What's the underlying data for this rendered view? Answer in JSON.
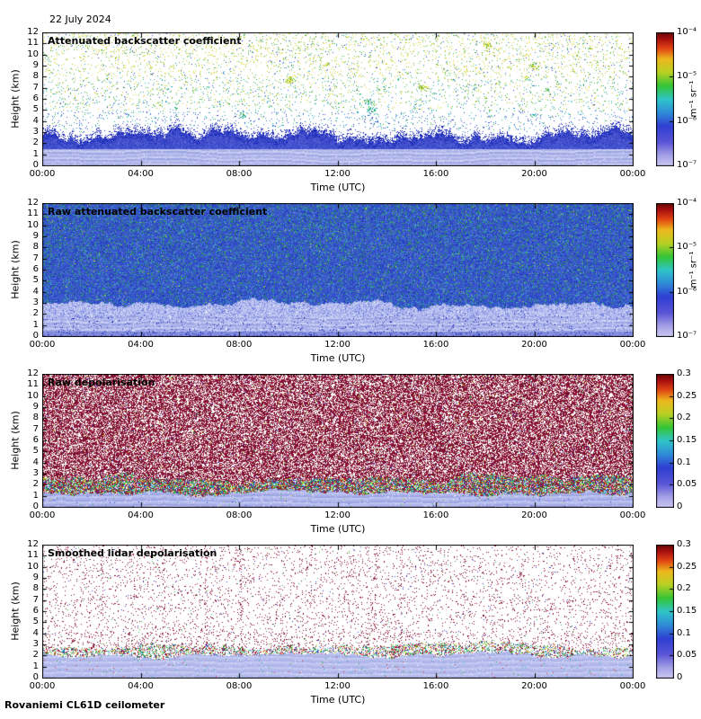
{
  "date_label": "22 July 2024",
  "footer_label": "Rovaniemi CL61D ceilometer",
  "axes": {
    "x_label": "Time (UTC)",
    "y_label": "Height (km)",
    "x_ticks": [
      "00:00",
      "04:00",
      "08:00",
      "12:00",
      "16:00",
      "20:00",
      "00:00"
    ],
    "y_ticks": [
      0,
      1,
      2,
      3,
      4,
      5,
      6,
      7,
      8,
      9,
      10,
      11,
      12
    ],
    "x_range_hours": [
      0,
      24
    ],
    "y_range_km": [
      0,
      12
    ]
  },
  "chart_data": {
    "type": "heatmap",
    "date": "22 July 2024",
    "instrument": "Rovaniemi CL61D ceilometer",
    "layout": {
      "panel_count": 4,
      "grid": false,
      "colorbar_position": "right"
    },
    "colormap": [
      [
        0,
        "#cdc9f2"
      ],
      [
        0.08,
        "#a5a1e6"
      ],
      [
        0.18,
        "#5a55d6"
      ],
      [
        0.3,
        "#2f3fd2"
      ],
      [
        0.4,
        "#2f8cd8"
      ],
      [
        0.5,
        "#2fc4c8"
      ],
      [
        0.6,
        "#35c435"
      ],
      [
        0.7,
        "#b8d024"
      ],
      [
        0.8,
        "#eeb81e"
      ],
      [
        0.88,
        "#e04414"
      ],
      [
        0.95,
        "#a80f0f"
      ],
      [
        1,
        "#600808"
      ]
    ],
    "panels": [
      {
        "title": "Attenuated backscatter coefficient",
        "colorbar": {
          "scale": "log",
          "range": [
            1e-07,
            0.0001
          ],
          "ticks": [
            "10⁻⁴",
            "10⁻⁵",
            "10⁻⁶",
            "10⁻⁷"
          ],
          "label": "m⁻¹ sr⁻¹"
        },
        "features": [
          "dense aerosol / boundary layer from surface up to ~3 km (blue-lavender, strong backscatter)",
          "layered streaks below ~1.5 km",
          "sparse noise specks above 3 km, green-yellow values aloft"
        ],
        "render": {
          "boundary_top_km": 2.85,
          "boundary_jitter_km": 0.55,
          "surface_top_km": 1.55,
          "surface_palette": [
            "#b9bfee",
            "#aab1e8",
            "#c7ccf3",
            "#9da6e2"
          ],
          "mid_palette": [
            "#4a57d0",
            "#3b48c9",
            "#5663d6",
            "#3340c4"
          ],
          "edge_speckle_color": "#1b2ab8",
          "clear_density_base": 0.055,
          "clear_density_top": 0.085,
          "clear_low_palette": [
            "#2b3ec6",
            "#2f63d4",
            "#2aa7c9"
          ],
          "clear_mid_palette": [
            "#2aa7c9",
            "#2db87e",
            "#3fae3f"
          ],
          "clear_high_palette": [
            "#3fae3f",
            "#8fc32a",
            "#cbd122",
            "#e2d51f"
          ]
        }
      },
      {
        "title": "Raw attenuated backscatter coefficient",
        "colorbar": {
          "scale": "log",
          "range": [
            1e-07,
            0.0001
          ],
          "ticks": [
            "10⁻⁴",
            "10⁻⁵",
            "10⁻⁶",
            "10⁻⁷"
          ],
          "label": "m⁻¹ sr⁻¹"
        },
        "features": [
          "noisy blue background with green/cyan speckle at all heights",
          "bright light layer ~2-3 km persisting all day",
          "lavender low-level layer below ~1.8 km"
        ],
        "render": {
          "bg_palette": [
            "#3a57cc",
            "#3350c8",
            "#4263d2",
            "#2d49c2"
          ],
          "low_palette": [
            "#b2b9ee",
            "#a4ace8",
            "#c4caf2",
            "#97a0e2"
          ],
          "band_palette": [
            "#ccd2f4",
            "#aeb6ee",
            "#96a0e6",
            "#bfc6f1"
          ],
          "deep_palette": [
            "#8089dc",
            "#8f98e2",
            "#7a84d8"
          ],
          "green": "#2f9a50",
          "cyan": "#36b0c0",
          "dark": "#1d2db4",
          "light": "#6e86e0",
          "yellow": "#d4d42a",
          "band_bottom_km": 1.85,
          "band_top_km": 2.95,
          "band_jitter_km": 0.3
        }
      },
      {
        "title": "Raw depolarisation",
        "colorbar": {
          "scale": "linear",
          "range": [
            0,
            0.3
          ],
          "ticks": [
            "0.3",
            "0.25",
            "0.2",
            "0.15",
            "0.1",
            "0.05",
            "0"
          ],
          "label": ""
        },
        "features": [
          "dense high-depolarisation noise (dark red) everywhere above ~2.5 km",
          "multicoloured mixed speckle band ~1.3-2.7 km",
          "low depolarisation (lavender-blue) below ~1.3 km"
        ],
        "render": {
          "maroon_palette": [
            "#7c1030",
            "#8e1336",
            "#6e0c28",
            "#9c1840"
          ],
          "maroon_density": 0.62,
          "lav_top_km": 1.35,
          "col_top_km": 2.7,
          "lav_palette": [
            "#aeb4ea",
            "#9ea6e4",
            "#bcc2f0"
          ],
          "col_mix": [
            [
              "#8e1336",
              0.3
            ],
            [
              "#2fae3f",
              0.14
            ],
            [
              "#d6d622",
              0.09
            ],
            [
              "#2fb4c4",
              0.1
            ],
            [
              "#2f3fc6",
              0.1
            ],
            [
              "#d62f2f",
              0.08
            ]
          ]
        }
      },
      {
        "title": "Smoothed lidar depolarisation",
        "colorbar": {
          "scale": "linear",
          "range": [
            0,
            0.3
          ],
          "ticks": [
            "0.3",
            "0.25",
            "0.2",
            "0.15",
            "0.1",
            "0.05",
            "0"
          ],
          "label": ""
        },
        "features": [
          "mostly clear aloft with sparse dark-red noise specks",
          "colourful speckle at aerosol-layer top ~2-3 km",
          "low-depolarisation lavender layer from surface to ~2 km"
        ],
        "render": {
          "speck_density": 0.058,
          "maroon_palette": [
            "#7c1030",
            "#8e1336",
            "#6e0c28",
            "#9c1840"
          ],
          "lav_top_km": 2.05,
          "col_top_km": 2.85,
          "lav_palette": [
            "#b6bcec",
            "#abb3e9",
            "#c3c9f2"
          ],
          "col_mix": [
            [
              "#8e1336",
              0.1
            ],
            [
              "#d62f2f",
              0.07
            ],
            [
              "#2fae3f",
              0.1
            ],
            [
              "#2fb4c4",
              0.07
            ],
            [
              "#2f3fc6",
              0.05
            ],
            [
              "#d6d622",
              0.04
            ]
          ],
          "extra_colors": [
            "#2f3fc6",
            "#2fae3f"
          ]
        }
      }
    ]
  }
}
